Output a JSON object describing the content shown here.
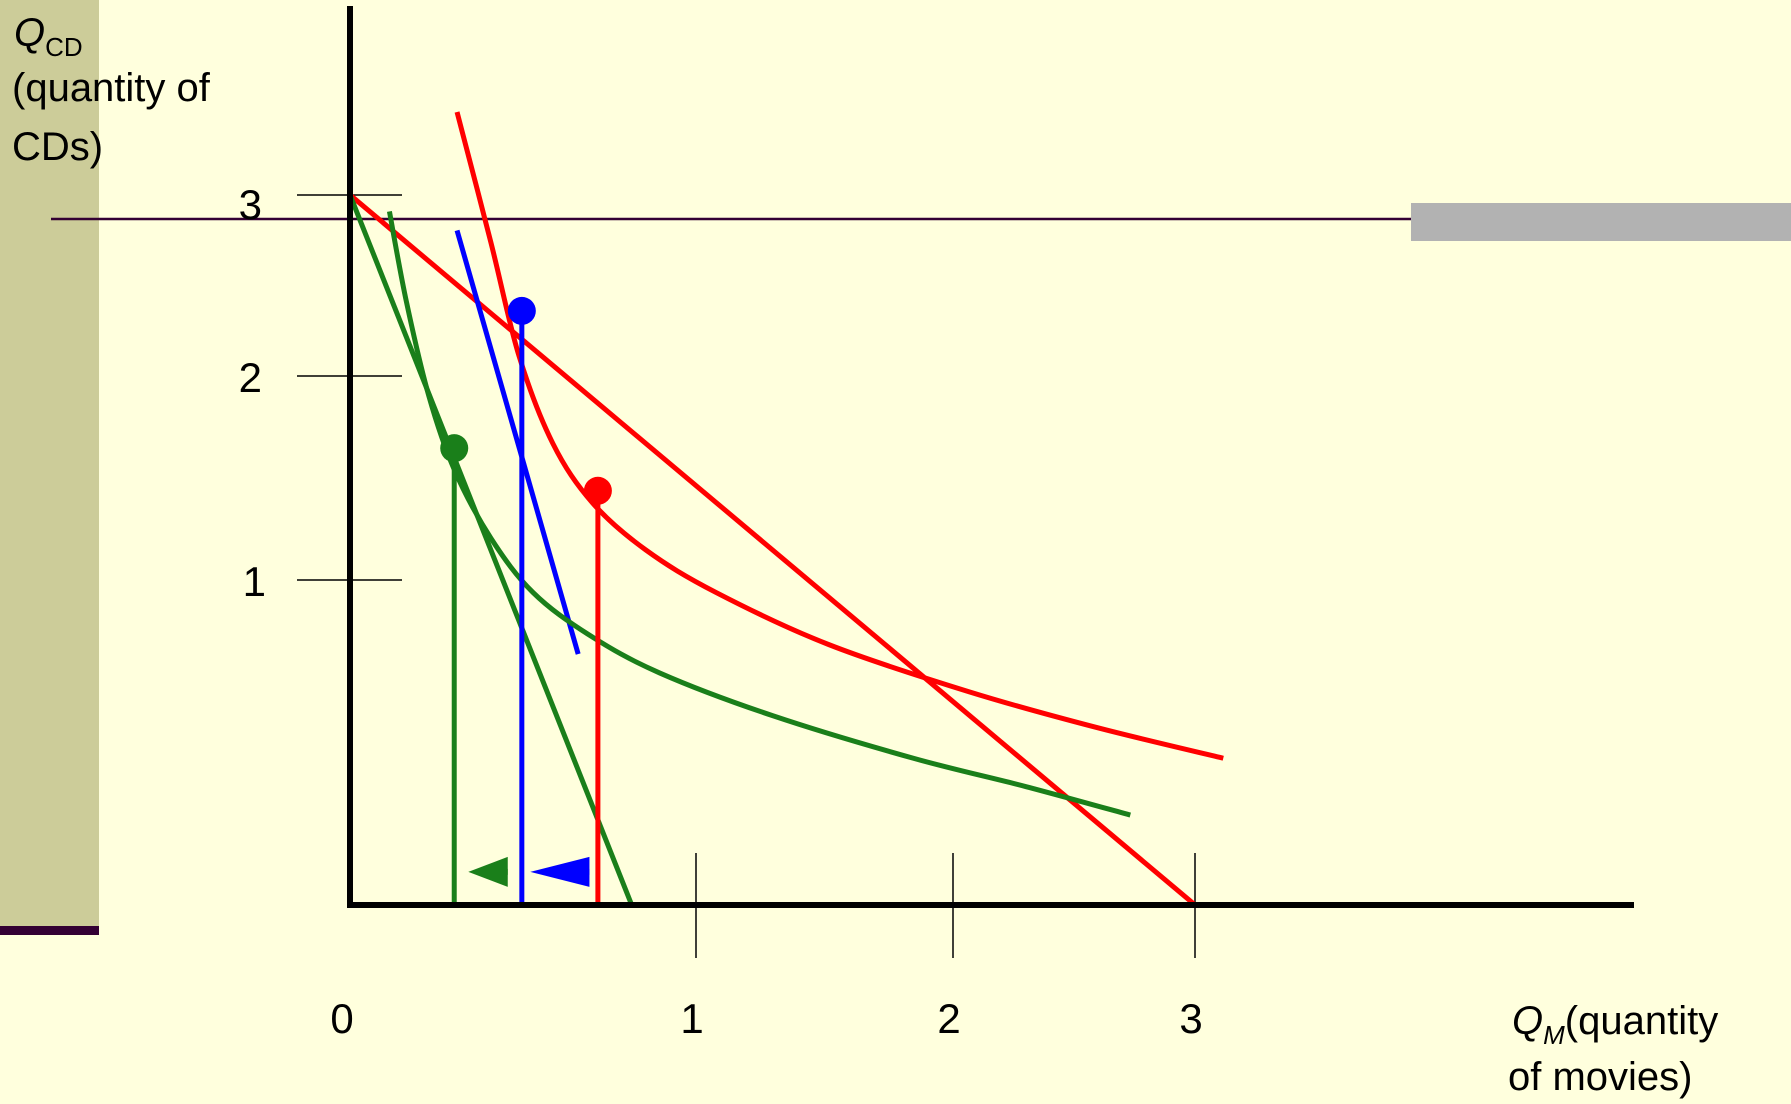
{
  "axes": {
    "y": {
      "symbol": "Q",
      "subscript": "CD",
      "description_lines": [
        "(quantity of",
        "CDs)"
      ],
      "ticks": [
        "3",
        "2",
        "1"
      ]
    },
    "x": {
      "symbol": "Q",
      "subscript": "M",
      "description_lines": [
        "(quantity",
        "of movies)"
      ],
      "ticks": [
        "0",
        "1",
        "2",
        "3"
      ]
    }
  },
  "colors": {
    "background": "#FFFFDD",
    "sidebar": "#CCCC99",
    "sidebar_underline": "#330033",
    "rule_line": "#330033",
    "gray_bar": "#B2B2B2",
    "red": "#FF0000",
    "blue": "#0000FF",
    "green": "#1A7F1A",
    "axis": "#000000"
  },
  "chart_data": {
    "type": "line",
    "xlim": [
      0,
      3.8
    ],
    "ylim": [
      0,
      3.5
    ],
    "series": [
      {
        "key": "budget_original",
        "color": "red",
        "points": [
          [
            0,
            3
          ],
          [
            3,
            0
          ]
        ]
      },
      {
        "key": "budget_new",
        "color": "green",
        "points": [
          [
            0,
            3
          ],
          [
            1,
            0
          ]
        ]
      },
      {
        "key": "budget_compensated",
        "color": "blue",
        "points": [
          [
            0.38,
            2.85
          ],
          [
            0.81,
            1.06
          ]
        ]
      },
      {
        "key": "indifference_high",
        "color": "red",
        "points": [
          [
            0.38,
            3.35
          ],
          [
            0.5,
            2.8
          ],
          [
            0.6,
            2.32
          ],
          [
            0.72,
            1.95
          ],
          [
            0.86,
            1.7
          ],
          [
            1.05,
            1.5
          ],
          [
            1.3,
            1.32
          ],
          [
            1.7,
            1.1
          ],
          [
            2.2,
            0.9
          ],
          [
            2.65,
            0.75
          ],
          [
            3.1,
            0.62
          ]
        ]
      },
      {
        "key": "indifference_low",
        "color": "green",
        "points": [
          [
            0.14,
            2.93
          ],
          [
            0.2,
            2.55
          ],
          [
            0.28,
            2.15
          ],
          [
            0.37,
            1.84
          ],
          [
            0.5,
            1.55
          ],
          [
            0.65,
            1.32
          ],
          [
            0.85,
            1.14
          ],
          [
            1.1,
            0.98
          ],
          [
            1.5,
            0.8
          ],
          [
            2.0,
            0.62
          ],
          [
            2.4,
            0.5
          ],
          [
            2.77,
            0.38
          ]
        ]
      },
      {
        "key": "drop_red",
        "color": "red",
        "points": [
          [
            0.88,
            1.75
          ],
          [
            0.88,
            0
          ]
        ]
      },
      {
        "key": "drop_blue",
        "color": "blue",
        "points": [
          [
            0.61,
            2.51
          ],
          [
            0.61,
            0
          ]
        ]
      },
      {
        "key": "drop_green",
        "color": "green",
        "points": [
          [
            0.37,
            1.93
          ],
          [
            0.37,
            0
          ]
        ]
      }
    ],
    "points": [
      {
        "key": "original_optimum",
        "color": "red",
        "x": 0.88,
        "y": 1.75
      },
      {
        "key": "compensated_optimum",
        "color": "blue",
        "x": 0.61,
        "y": 2.51
      },
      {
        "key": "new_optimum",
        "color": "green",
        "x": 0.37,
        "y": 1.93
      }
    ],
    "arrows": [
      {
        "key": "substitution_effect",
        "color": "blue",
        "from": 0.85,
        "to": 0.64,
        "y": 0.14
      },
      {
        "key": "income_effect",
        "color": "green",
        "from": 0.56,
        "to": 0.42,
        "y": 0.14
      }
    ]
  }
}
